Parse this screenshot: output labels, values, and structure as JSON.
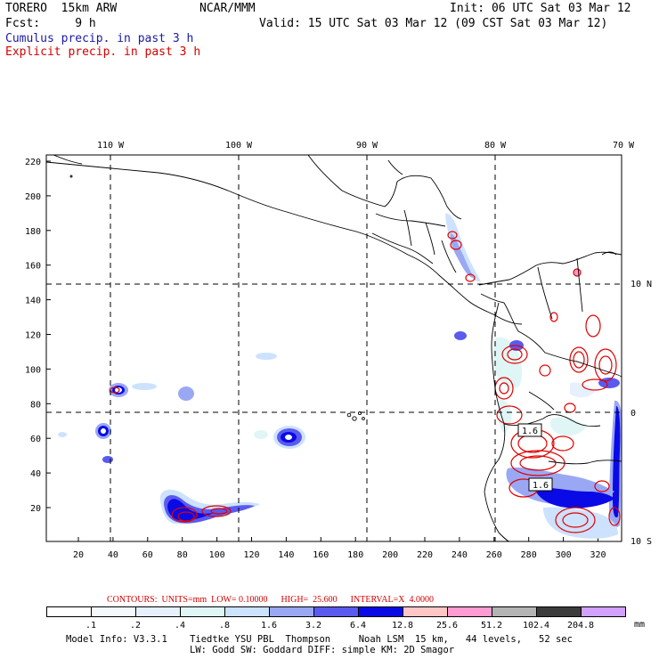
{
  "header": {
    "model": "TORERO  15km ARW",
    "org": "NCAR/MMM",
    "init": "Init: 06 UTC Sat 03 Mar 12",
    "fcst": "Fcst:     9 h",
    "valid": "Valid: 15 UTC Sat 03 Mar 12 (09 CST Sat 03 Mar 12)",
    "cumulus_label": "Cumulus precip. in past 3 h",
    "explicit_label": "Explicit precip. in past 3 h"
  },
  "colors": {
    "cumulus": "#1a1aa0",
    "explicit": "#d40000",
    "contour": "#e00000"
  },
  "map": {
    "lon_labels": [
      "110 W",
      "100 W",
      "90 W",
      "80 W",
      "70 W"
    ],
    "lat_labels": [
      "10 N",
      "0",
      "10 S"
    ],
    "y_ticks": [
      "220",
      "200",
      "180",
      "160",
      "140",
      "120",
      "100",
      "80",
      "60",
      "40",
      "20"
    ],
    "x_ticks": [
      "20",
      "40",
      "60",
      "80",
      "100",
      "120",
      "140",
      "160",
      "180",
      "200",
      "220",
      "240",
      "260",
      "280",
      "300",
      "320"
    ],
    "box_labels": [
      "1.6",
      "1.6"
    ]
  },
  "legend": {
    "contours_text": "CONTOURS:  UNITS=mm  LOW= 0.10000      HIGH=  25.600      INTERVAL=X  4.0000",
    "colors": [
      "#ffffff",
      "#f4f8ff",
      "#e6f0ff",
      "#e0f6f6",
      "#cce2ff",
      "#9aa8f4",
      "#5a5af0",
      "#0a0ae6",
      "#ffc6c6",
      "#ff9ad2",
      "#b4b4b4",
      "#3c3c3c",
      "#d2a0ff"
    ],
    "labels": [
      ".1",
      ".2",
      ".4",
      ".8",
      "1.6",
      "3.2",
      "6.4",
      "12.8",
      "25.6",
      "51.2",
      "102.4",
      "204.8"
    ],
    "unit": "mm"
  },
  "footer": {
    "line1": "Model Info: V3.3.1    Tiedtke YSU PBL  Thompson     Noah LSM  15 km,   44 levels,   52 sec",
    "line2": "LW: Godd SW: Goddard DIFF: simple KM: 2D Smagor"
  }
}
